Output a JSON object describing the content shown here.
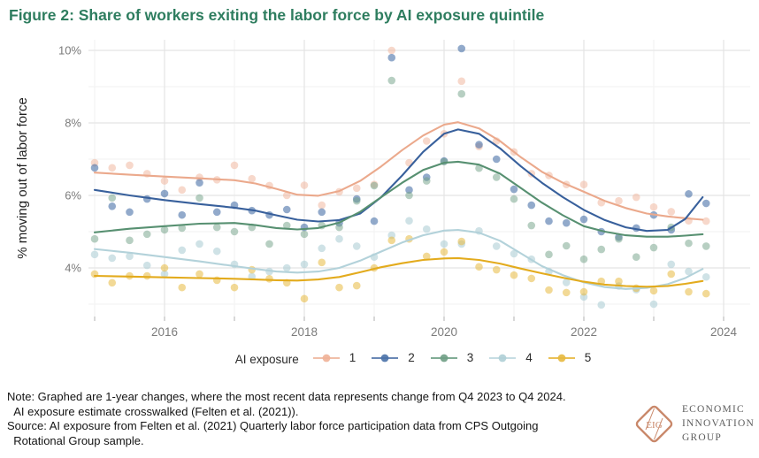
{
  "title": "Figure 2: Share of workers exiting the labor force by AI exposure quintile",
  "legend": {
    "title": "AI exposure",
    "items": [
      "1",
      "2",
      "3",
      "4",
      "5"
    ]
  },
  "notes": {
    "lines": [
      "Note: Graphed are 1-year changes, where the most recent data represents change from Q4 2023 to Q4 2024.",
      "  AI exposure estimate crosswalked (Felten et al. (2021)).",
      "Source: AI exposure from Felten et al. (2021) Quarterly labor force participation data from CPS Outgoing",
      "  Rotational Group sample."
    ]
  },
  "logo": {
    "monogram": "EIG",
    "lines": [
      "ECONOMIC",
      "INNOVATION",
      "GROUP"
    ],
    "accent": "#c9886a"
  },
  "colors": {
    "title_green": "#2e7d5f",
    "grid_major": "#e4e4e4",
    "grid_minor": "#f2f2f2",
    "axis_text": "#7b7b7b",
    "tick_mark": "#bdbdbd"
  },
  "chart_data": {
    "type": "scatter",
    "subtype": "quarterly points with loess smoothed lines",
    "title": "Share of workers exiting the labor force by AI exposure quintile",
    "xlabel": "",
    "ylabel": "% moving out of labor force",
    "x_ticks": [
      2016,
      2018,
      2020,
      2022,
      2024
    ],
    "x_minor": [
      2015,
      2017,
      2019,
      2021,
      2023
    ],
    "x_tick_marks": [
      2015,
      2016,
      2017,
      2018,
      2019,
      2020,
      2021,
      2022,
      2023,
      2024
    ],
    "y_ticks": [
      {
        "v": 10,
        "label": "10%"
      },
      {
        "v": 8,
        "label": "8%"
      },
      {
        "v": 6,
        "label": "6%"
      },
      {
        "v": 4,
        "label": "4%"
      }
    ],
    "y_minor": [
      3,
      5,
      7,
      9
    ],
    "xlim": [
      2014.85,
      2024.35
    ],
    "ylim": [
      2.6,
      10.3
    ],
    "grid": true,
    "legend_position": "bottom",
    "points_x_start": 2015.0,
    "points_x_step": 0.25,
    "series": [
      {
        "label": "1",
        "line_color": "#eba98c",
        "point_color": "#f0b197",
        "point_opacity": 0.5,
        "line": [
          [
            2015,
            6.63
          ],
          [
            2015.5,
            6.57
          ],
          [
            2016,
            6.52
          ],
          [
            2016.5,
            6.47
          ],
          [
            2017,
            6.42
          ],
          [
            2017.3,
            6.33
          ],
          [
            2017.6,
            6.18
          ],
          [
            2017.9,
            6.02
          ],
          [
            2018.2,
            5.99
          ],
          [
            2018.5,
            6.12
          ],
          [
            2018.8,
            6.4
          ],
          [
            2019.1,
            6.8
          ],
          [
            2019.4,
            7.25
          ],
          [
            2019.7,
            7.65
          ],
          [
            2020,
            7.95
          ],
          [
            2020.2,
            8.02
          ],
          [
            2020.5,
            7.85
          ],
          [
            2020.8,
            7.5
          ],
          [
            2021.1,
            7.05
          ],
          [
            2021.4,
            6.65
          ],
          [
            2021.7,
            6.35
          ],
          [
            2022,
            6.1
          ],
          [
            2022.3,
            5.85
          ],
          [
            2022.6,
            5.65
          ],
          [
            2022.9,
            5.5
          ],
          [
            2023.2,
            5.42
          ],
          [
            2023.45,
            5.37
          ],
          [
            2023.7,
            5.33
          ]
        ],
        "points": [
          6.9,
          6.76,
          6.83,
          6.6,
          6.4,
          6.15,
          6.5,
          6.43,
          6.83,
          6.46,
          6.27,
          6.0,
          6.28,
          5.73,
          6.1,
          6.2,
          6.3,
          10.0,
          6.9,
          7.5,
          7.7,
          9.15,
          7.35,
          7.5,
          7.2,
          6.6,
          6.55,
          6.3,
          6.3,
          5.8,
          5.85,
          5.95,
          5.68,
          5.55,
          5.3,
          5.29
        ]
      },
      {
        "label": "2",
        "line_color": "#38609c",
        "point_color": "#4a72a8",
        "point_opacity": 0.6,
        "line": [
          [
            2015,
            6.15
          ],
          [
            2015.5,
            6.0
          ],
          [
            2016,
            5.87
          ],
          [
            2016.5,
            5.76
          ],
          [
            2017,
            5.66
          ],
          [
            2017.3,
            5.58
          ],
          [
            2017.6,
            5.45
          ],
          [
            2017.9,
            5.33
          ],
          [
            2018.2,
            5.28
          ],
          [
            2018.5,
            5.32
          ],
          [
            2018.8,
            5.5
          ],
          [
            2019.1,
            5.95
          ],
          [
            2019.4,
            6.55
          ],
          [
            2019.7,
            7.2
          ],
          [
            2020,
            7.7
          ],
          [
            2020.2,
            7.82
          ],
          [
            2020.5,
            7.7
          ],
          [
            2020.8,
            7.3
          ],
          [
            2021.1,
            6.8
          ],
          [
            2021.4,
            6.35
          ],
          [
            2021.7,
            5.95
          ],
          [
            2022,
            5.6
          ],
          [
            2022.3,
            5.32
          ],
          [
            2022.6,
            5.12
          ],
          [
            2022.9,
            5.02
          ],
          [
            2023.2,
            5.05
          ],
          [
            2023.45,
            5.35
          ],
          [
            2023.7,
            5.95
          ]
        ],
        "points": [
          6.76,
          5.7,
          5.54,
          5.9,
          6.05,
          5.46,
          6.35,
          5.54,
          5.73,
          5.58,
          5.46,
          5.61,
          5.12,
          5.54,
          5.24,
          5.9,
          5.29,
          9.8,
          6.15,
          6.5,
          6.95,
          10.05,
          7.4,
          7.0,
          6.17,
          5.73,
          5.29,
          5.24,
          5.34,
          5.0,
          4.85,
          5.1,
          5.46,
          5.05,
          6.04,
          5.78
        ]
      },
      {
        "label": "3",
        "line_color": "#579071",
        "point_color": "#6f9f85",
        "point_opacity": 0.5,
        "line": [
          [
            2015,
            4.98
          ],
          [
            2015.5,
            5.08
          ],
          [
            2016,
            5.15
          ],
          [
            2016.5,
            5.22
          ],
          [
            2017,
            5.24
          ],
          [
            2017.3,
            5.18
          ],
          [
            2017.6,
            5.1
          ],
          [
            2017.9,
            5.06
          ],
          [
            2018.2,
            5.1
          ],
          [
            2018.5,
            5.25
          ],
          [
            2018.8,
            5.55
          ],
          [
            2019.1,
            5.95
          ],
          [
            2019.4,
            6.35
          ],
          [
            2019.7,
            6.7
          ],
          [
            2020,
            6.9
          ],
          [
            2020.2,
            6.93
          ],
          [
            2020.5,
            6.85
          ],
          [
            2020.8,
            6.6
          ],
          [
            2021.1,
            6.2
          ],
          [
            2021.4,
            5.8
          ],
          [
            2021.7,
            5.45
          ],
          [
            2022,
            5.15
          ],
          [
            2022.3,
            5.0
          ],
          [
            2022.6,
            4.9
          ],
          [
            2022.9,
            4.86
          ],
          [
            2023.2,
            4.86
          ],
          [
            2023.45,
            4.89
          ],
          [
            2023.7,
            4.93
          ]
        ],
        "points": [
          4.8,
          5.93,
          4.76,
          4.93,
          5.05,
          5.1,
          5.93,
          5.12,
          5.0,
          5.12,
          4.66,
          5.17,
          4.93,
          5.17,
          5.12,
          5.85,
          6.27,
          9.17,
          6.0,
          6.4,
          6.93,
          8.8,
          6.75,
          6.5,
          5.9,
          5.17,
          4.37,
          4.61,
          4.24,
          4.51,
          4.8,
          4.3,
          4.56,
          5.12,
          4.68,
          4.6
        ]
      },
      {
        "label": "4",
        "line_color": "#b3d2da",
        "point_color": "#afcfd6",
        "point_opacity": 0.6,
        "line": [
          [
            2015,
            4.52
          ],
          [
            2015.5,
            4.42
          ],
          [
            2016,
            4.3
          ],
          [
            2016.5,
            4.18
          ],
          [
            2017,
            4.05
          ],
          [
            2017.3,
            3.97
          ],
          [
            2017.6,
            3.9
          ],
          [
            2017.9,
            3.87
          ],
          [
            2018.2,
            3.9
          ],
          [
            2018.5,
            4.0
          ],
          [
            2018.8,
            4.2
          ],
          [
            2019.1,
            4.45
          ],
          [
            2019.4,
            4.7
          ],
          [
            2019.7,
            4.9
          ],
          [
            2020,
            5.03
          ],
          [
            2020.2,
            5.05
          ],
          [
            2020.5,
            4.97
          ],
          [
            2020.8,
            4.75
          ],
          [
            2021.1,
            4.4
          ],
          [
            2021.4,
            4.05
          ],
          [
            2021.7,
            3.8
          ],
          [
            2022,
            3.6
          ],
          [
            2022.3,
            3.47
          ],
          [
            2022.6,
            3.42
          ],
          [
            2022.9,
            3.45
          ],
          [
            2023.2,
            3.55
          ],
          [
            2023.45,
            3.72
          ],
          [
            2023.7,
            3.97
          ]
        ],
        "points": [
          4.37,
          4.27,
          4.32,
          4.07,
          3.83,
          4.49,
          4.66,
          4.46,
          4.1,
          3.76,
          3.9,
          4.0,
          4.1,
          4.54,
          4.8,
          4.6,
          4.3,
          4.9,
          5.3,
          5.07,
          4.66,
          4.66,
          5.02,
          4.6,
          4.39,
          4.24,
          3.9,
          3.6,
          3.2,
          2.98,
          3.5,
          3.4,
          3.0,
          4.1,
          3.9,
          3.75
        ]
      },
      {
        "label": "5",
        "line_color": "#e3ab1d",
        "point_color": "#e7b93f",
        "point_opacity": 0.55,
        "line": [
          [
            2015,
            3.78
          ],
          [
            2015.5,
            3.76
          ],
          [
            2016,
            3.74
          ],
          [
            2016.5,
            3.72
          ],
          [
            2017,
            3.7
          ],
          [
            2017.3,
            3.68
          ],
          [
            2017.6,
            3.66
          ],
          [
            2017.9,
            3.65
          ],
          [
            2018.2,
            3.68
          ],
          [
            2018.5,
            3.75
          ],
          [
            2018.8,
            3.88
          ],
          [
            2019.1,
            4.02
          ],
          [
            2019.4,
            4.13
          ],
          [
            2019.7,
            4.22
          ],
          [
            2020,
            4.26
          ],
          [
            2020.2,
            4.27
          ],
          [
            2020.5,
            4.22
          ],
          [
            2020.8,
            4.12
          ],
          [
            2021.1,
            3.98
          ],
          [
            2021.4,
            3.85
          ],
          [
            2021.7,
            3.73
          ],
          [
            2022,
            3.62
          ],
          [
            2022.3,
            3.54
          ],
          [
            2022.6,
            3.5
          ],
          [
            2022.9,
            3.48
          ],
          [
            2023.2,
            3.5
          ],
          [
            2023.45,
            3.56
          ],
          [
            2023.7,
            3.64
          ]
        ],
        "points": [
          3.83,
          3.59,
          3.78,
          3.78,
          4.0,
          3.46,
          3.83,
          3.66,
          3.46,
          3.95,
          3.7,
          3.59,
          3.15,
          4.15,
          3.46,
          3.51,
          4.0,
          4.76,
          4.8,
          4.32,
          4.44,
          4.73,
          4.03,
          3.95,
          3.8,
          3.71,
          3.39,
          3.32,
          3.34,
          3.63,
          3.63,
          3.44,
          3.37,
          3.83,
          3.34,
          3.29
        ]
      }
    ]
  }
}
